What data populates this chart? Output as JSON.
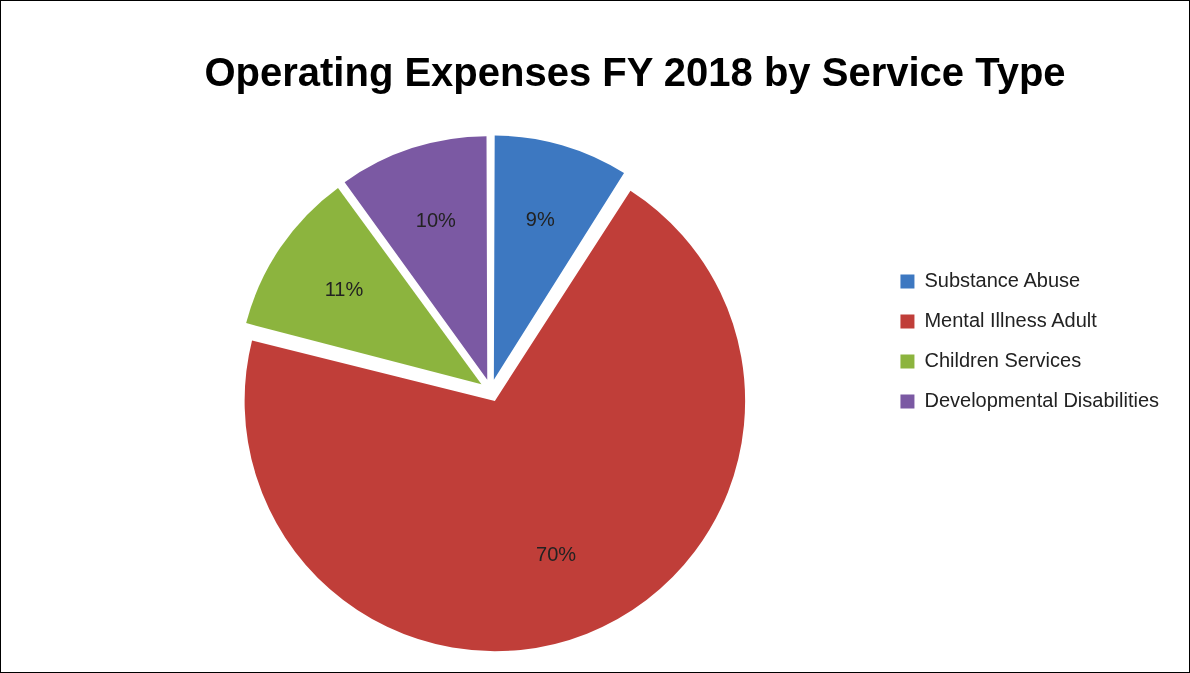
{
  "chart_data": {
    "type": "pie",
    "title": "Operating Expenses FY 2018 by Service Type",
    "categories": [
      "Substance Abuse",
      "Mental Illness Adult",
      "Children Services",
      "Developmental Disabilities"
    ],
    "values": [
      9,
      70,
      11,
      10
    ],
    "colors": [
      "#3d78c1",
      "#c03e39",
      "#8cb43e",
      "#7b59a3"
    ],
    "value_labels": [
      "9%",
      "70%",
      "11%",
      "10%"
    ],
    "legend": "right"
  }
}
